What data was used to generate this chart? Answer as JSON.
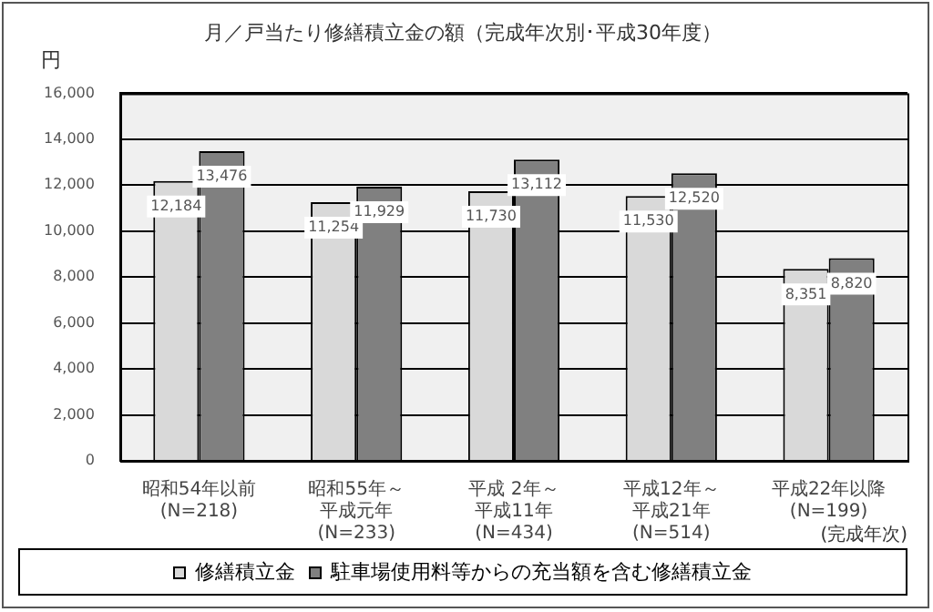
{
  "chart_data": {
    "type": "bar",
    "title": "月／戸当たり修繕積立金の額（完成年次別･平成30年度）",
    "ylabel": "円",
    "categories": [
      "昭和54年以前\n(N=218)",
      "昭和55年～平成元年\n(N=233)",
      "平成 2年～平成11年\n(N=434)",
      "平成12年～平成21年\n(N=514)",
      "平成22年以降\n(N=199)"
    ],
    "series": [
      {
        "name": "修繕積立金",
        "color": "#d9d9d9",
        "values": [
          12184,
          11254,
          11730,
          11530,
          8351
        ],
        "value_labels": [
          "12,184",
          "11,254",
          "11,730",
          "11,530",
          "8,351"
        ]
      },
      {
        "name": "駐車場使用料等からの充当額を含む修繕積立金",
        "color": "#808080",
        "values": [
          13476,
          11929,
          13112,
          12520,
          8820
        ],
        "value_labels": [
          "13,476",
          "11,929",
          "13,112",
          "12,520",
          "8,820"
        ]
      }
    ],
    "ylim": [
      0,
      16000
    ],
    "yticks": [
      0,
      {
        "value": 2000,
        "label": "2,000"
      },
      {
        "value": 4000,
        "label": "4,000"
      },
      {
        "value": 6000,
        "label": "6,000"
      },
      {
        "value": 8000,
        "label": "8,000"
      },
      {
        "value": 10000,
        "label": "10,000"
      },
      {
        "value": 12000,
        "label": "12,000"
      },
      {
        "value": 14000,
        "label": "14,000"
      },
      {
        "value": 16000,
        "label": "16,000"
      }
    ],
    "grid": "y",
    "legend": "bottom",
    "annotations": [
      "(完成年次)"
    ]
  }
}
